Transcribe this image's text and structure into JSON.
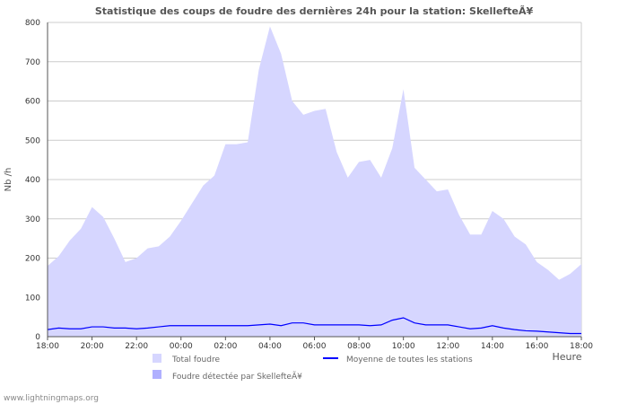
{
  "chart_data": {
    "type": "area",
    "title": "Statistique des coups de foudre des dernières 24h pour la station: SkellefteÃ¥",
    "xlabel": "Heure",
    "ylabel": "Nb /h",
    "ylim": [
      0,
      800
    ],
    "yticks": [
      0,
      100,
      200,
      300,
      400,
      500,
      600,
      700,
      800
    ],
    "xticks": [
      "18:00",
      "20:00",
      "22:00",
      "00:00",
      "02:00",
      "04:00",
      "06:00",
      "08:00",
      "10:00",
      "12:00",
      "14:00",
      "16:00",
      "18:00"
    ],
    "x_interval_hours": 0.5,
    "series": [
      {
        "name": "Total foudre",
        "color": "#d6d6ff",
        "values": [
          180,
          205,
          245,
          275,
          330,
          305,
          250,
          190,
          200,
          225,
          230,
          255,
          295,
          340,
          385,
          410,
          490,
          490,
          495,
          680,
          790,
          720,
          600,
          565,
          575,
          580,
          470,
          405,
          445,
          450,
          405,
          480,
          630,
          430,
          400,
          370,
          375,
          310,
          260,
          260,
          320,
          300,
          255,
          235,
          190,
          170,
          145,
          160,
          185
        ]
      },
      {
        "name": "Foudre détectée par SkellefteÃ¥",
        "color": "#b0b0ff",
        "values": []
      },
      {
        "name": "Moyenne de toutes les stations",
        "color": "#0000ff",
        "values": [
          18,
          22,
          20,
          20,
          25,
          25,
          22,
          22,
          20,
          22,
          25,
          28,
          28,
          28,
          28,
          28,
          28,
          28,
          28,
          30,
          32,
          28,
          35,
          35,
          30,
          30,
          30,
          30,
          30,
          28,
          30,
          42,
          48,
          35,
          30,
          30,
          30,
          25,
          20,
          22,
          28,
          22,
          18,
          15,
          14,
          12,
          10,
          8,
          8
        ]
      }
    ]
  },
  "footer": "www.lightningmaps.org"
}
